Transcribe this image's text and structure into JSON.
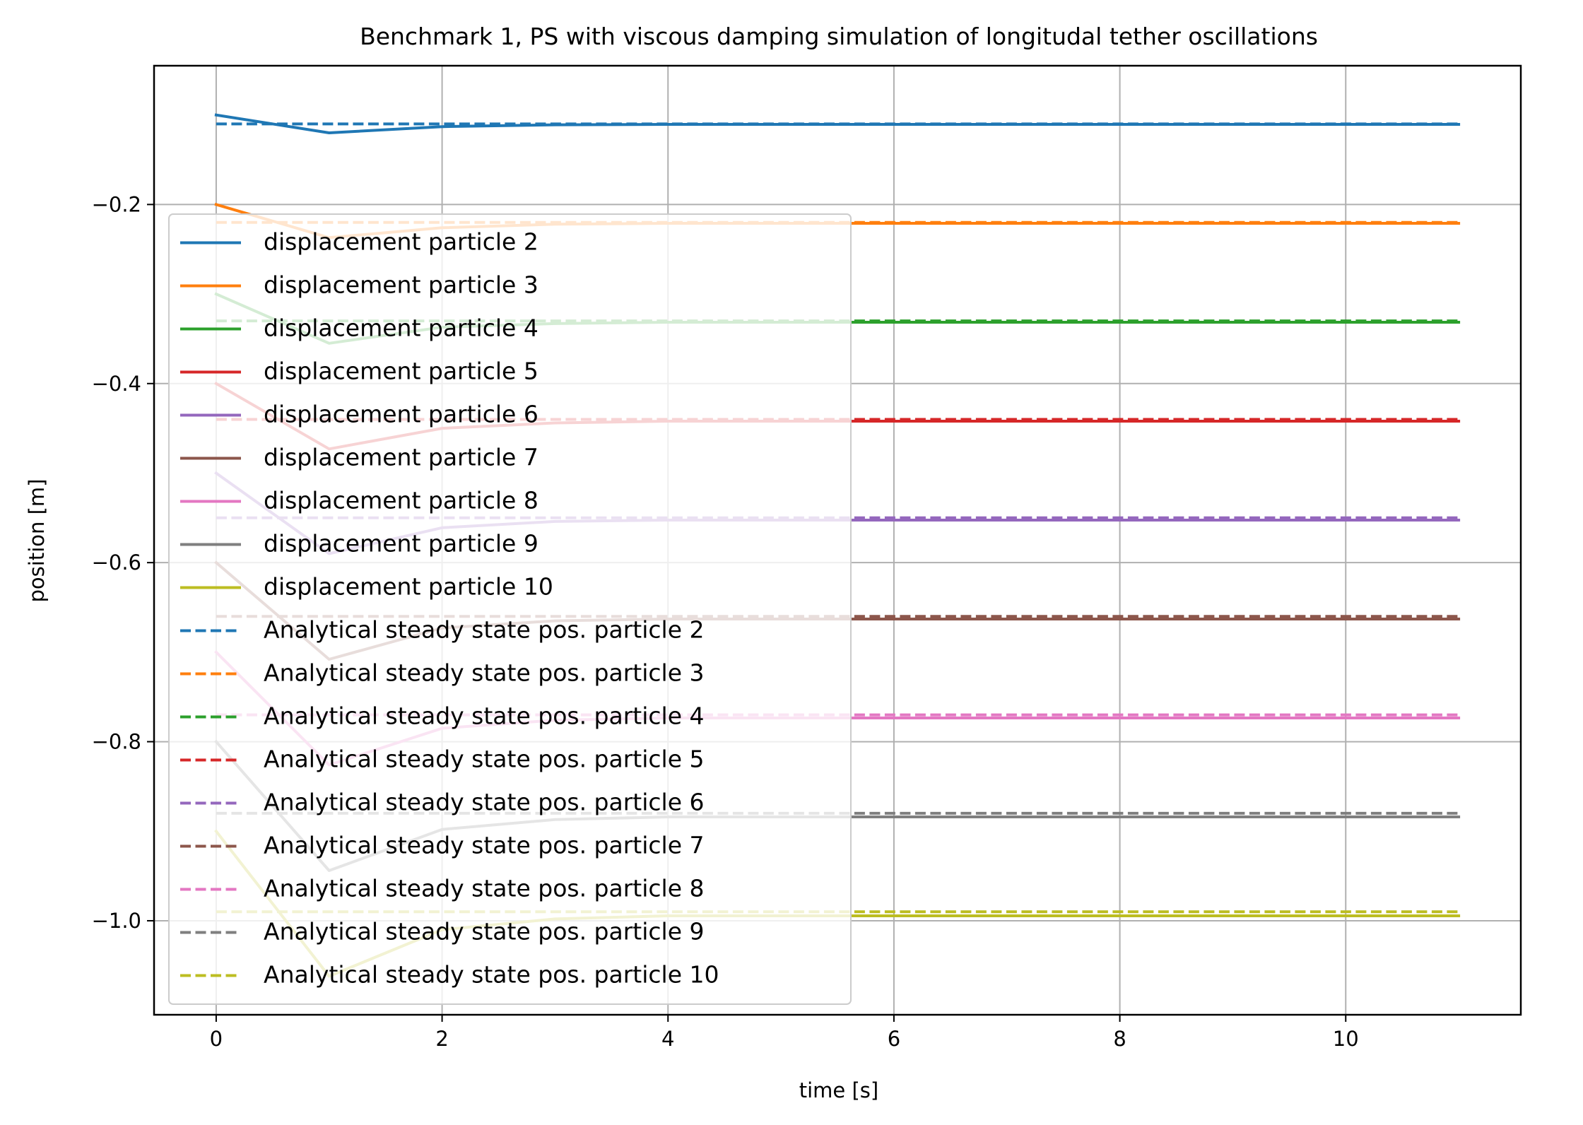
{
  "chart_data": {
    "type": "line",
    "title": "Benchmark 1, PS with viscous damping simulation of longitudal tether oscillations",
    "xlabel": "time [s]",
    "ylabel": "position [m]",
    "xlim": [
      -0.55,
      11.55
    ],
    "ylim": [
      -1.105,
      -0.045
    ],
    "xticks": [
      0,
      2,
      4,
      6,
      8,
      10
    ],
    "xtick_labels": [
      "0",
      "2",
      "4",
      "6",
      "8",
      "10"
    ],
    "yticks": [
      -0.2,
      -0.4,
      -0.6,
      -0.8,
      -1.0
    ],
    "ytick_labels": [
      "−0.2",
      "−0.4",
      "−0.6",
      "−0.8",
      "−1.0"
    ],
    "grid": true,
    "legend_position": "lower-left",
    "x": [
      0,
      1,
      2,
      3,
      4,
      5,
      6,
      7,
      8,
      9,
      10,
      11
    ],
    "series": [
      {
        "name": "displacement particle 2",
        "color": "#1f77b4",
        "style": "solid",
        "values": [
          -0.1,
          -0.12,
          -0.113,
          -0.111,
          -0.1105,
          -0.1105,
          -0.1105,
          -0.1105,
          -0.1105,
          -0.1105,
          -0.1105,
          -0.1105
        ]
      },
      {
        "name": "displacement particle 3",
        "color": "#ff7f0e",
        "style": "solid",
        "values": [
          -0.2,
          -0.237,
          -0.226,
          -0.222,
          -0.221,
          -0.221,
          -0.221,
          -0.221,
          -0.221,
          -0.221,
          -0.221,
          -0.221
        ]
      },
      {
        "name": "displacement particle 4",
        "color": "#2ca02c",
        "style": "solid",
        "values": [
          -0.3,
          -0.355,
          -0.337,
          -0.333,
          -0.3315,
          -0.3315,
          -0.3315,
          -0.3315,
          -0.3315,
          -0.3315,
          -0.3315,
          -0.3315
        ]
      },
      {
        "name": "displacement particle 5",
        "color": "#d62728",
        "style": "solid",
        "values": [
          -0.4,
          -0.473,
          -0.45,
          -0.444,
          -0.442,
          -0.442,
          -0.442,
          -0.442,
          -0.442,
          -0.442,
          -0.442,
          -0.442
        ]
      },
      {
        "name": "displacement particle 6",
        "color": "#9467bd",
        "style": "solid",
        "values": [
          -0.5,
          -0.59,
          -0.561,
          -0.554,
          -0.5525,
          -0.5525,
          -0.5525,
          -0.5525,
          -0.5525,
          -0.5525,
          -0.5525,
          -0.5525
        ]
      },
      {
        "name": "displacement particle 7",
        "color": "#8c564b",
        "style": "solid",
        "values": [
          -0.6,
          -0.708,
          -0.673,
          -0.665,
          -0.663,
          -0.663,
          -0.663,
          -0.663,
          -0.663,
          -0.663,
          -0.663,
          -0.663
        ]
      },
      {
        "name": "displacement particle 8",
        "color": "#e377c2",
        "style": "solid",
        "values": [
          -0.7,
          -0.826,
          -0.785,
          -0.776,
          -0.7735,
          -0.7735,
          -0.7735,
          -0.7735,
          -0.7735,
          -0.7735,
          -0.7735,
          -0.7735
        ]
      },
      {
        "name": "displacement particle 9",
        "color": "#7f7f7f",
        "style": "solid",
        "values": [
          -0.8,
          -0.944,
          -0.898,
          -0.887,
          -0.884,
          -0.884,
          -0.884,
          -0.884,
          -0.884,
          -0.884,
          -0.884,
          -0.884
        ]
      },
      {
        "name": "displacement particle 10",
        "color": "#bcbd22",
        "style": "solid",
        "values": [
          -0.9,
          -1.062,
          -1.01,
          -0.998,
          -0.9945,
          -0.9945,
          -0.9945,
          -0.9945,
          -0.9945,
          -0.9945,
          -0.9945,
          -0.9945
        ]
      },
      {
        "name": "Analytical steady state pos. particle 2",
        "color": "#1f77b4",
        "style": "dashed",
        "values": [
          -0.11,
          -0.11,
          -0.11,
          -0.11,
          -0.11,
          -0.11,
          -0.11,
          -0.11,
          -0.11,
          -0.11,
          -0.11,
          -0.11
        ]
      },
      {
        "name": "Analytical steady state pos. particle 3",
        "color": "#ff7f0e",
        "style": "dashed",
        "values": [
          -0.22,
          -0.22,
          -0.22,
          -0.22,
          -0.22,
          -0.22,
          -0.22,
          -0.22,
          -0.22,
          -0.22,
          -0.22,
          -0.22
        ]
      },
      {
        "name": "Analytical steady state pos. particle 4",
        "color": "#2ca02c",
        "style": "dashed",
        "values": [
          -0.33,
          -0.33,
          -0.33,
          -0.33,
          -0.33,
          -0.33,
          -0.33,
          -0.33,
          -0.33,
          -0.33,
          -0.33,
          -0.33
        ]
      },
      {
        "name": "Analytical steady state pos. particle 5",
        "color": "#d62728",
        "style": "dashed",
        "values": [
          -0.44,
          -0.44,
          -0.44,
          -0.44,
          -0.44,
          -0.44,
          -0.44,
          -0.44,
          -0.44,
          -0.44,
          -0.44,
          -0.44
        ]
      },
      {
        "name": "Analytical steady state pos. particle 6",
        "color": "#9467bd",
        "style": "dashed",
        "values": [
          -0.55,
          -0.55,
          -0.55,
          -0.55,
          -0.55,
          -0.55,
          -0.55,
          -0.55,
          -0.55,
          -0.55,
          -0.55,
          -0.55
        ]
      },
      {
        "name": "Analytical steady state pos. particle 7",
        "color": "#8c564b",
        "style": "dashed",
        "values": [
          -0.66,
          -0.66,
          -0.66,
          -0.66,
          -0.66,
          -0.66,
          -0.66,
          -0.66,
          -0.66,
          -0.66,
          -0.66,
          -0.66
        ]
      },
      {
        "name": "Analytical steady state pos. particle 8",
        "color": "#e377c2",
        "style": "dashed",
        "values": [
          -0.77,
          -0.77,
          -0.77,
          -0.77,
          -0.77,
          -0.77,
          -0.77,
          -0.77,
          -0.77,
          -0.77,
          -0.77,
          -0.77
        ]
      },
      {
        "name": "Analytical steady state pos. particle 9",
        "color": "#7f7f7f",
        "style": "dashed",
        "values": [
          -0.88,
          -0.88,
          -0.88,
          -0.88,
          -0.88,
          -0.88,
          -0.88,
          -0.88,
          -0.88,
          -0.88,
          -0.88,
          -0.88
        ]
      },
      {
        "name": "Analytical steady state pos. particle 10",
        "color": "#bcbd22",
        "style": "dashed",
        "values": [
          -0.99,
          -0.99,
          -0.99,
          -0.99,
          -0.99,
          -0.99,
          -0.99,
          -0.99,
          -0.99,
          -0.99,
          -0.99,
          -0.99
        ]
      }
    ]
  }
}
